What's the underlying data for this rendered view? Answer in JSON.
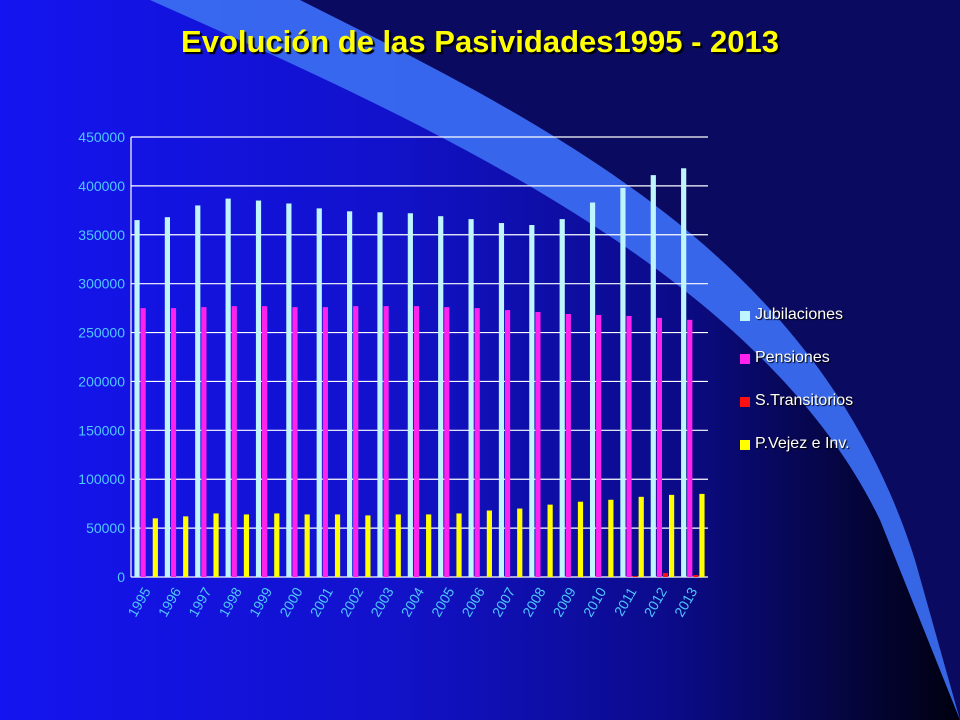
{
  "slide": {
    "title": "Evolución de las Pasividades1995 - 2013"
  },
  "colors": {
    "background_start": "#1414f0",
    "background_end": "#000010",
    "swoosh": "#3a6cf0",
    "title": "#ffff00",
    "axis_text": "#4fc8ff",
    "grid": "#ffffff"
  },
  "chart_data": {
    "type": "bar",
    "title": "",
    "xlabel": "",
    "ylabel": "",
    "ylim": [
      0,
      450000
    ],
    "yticks": [
      0,
      50000,
      100000,
      150000,
      200000,
      250000,
      300000,
      350000,
      400000,
      450000
    ],
    "grid": true,
    "legend_position": "right",
    "categories": [
      "1995",
      "1996",
      "1997",
      "1998",
      "1999",
      "2000",
      "2001",
      "2002",
      "2003",
      "2004",
      "2005",
      "2006",
      "2007",
      "2008",
      "2009",
      "2010",
      "2011",
      "2012",
      "2013"
    ],
    "series": [
      {
        "name": "Jubilaciones",
        "color": "#bff5ff",
        "values": [
          365000,
          368000,
          380000,
          387000,
          385000,
          382000,
          377000,
          374000,
          373000,
          372000,
          369000,
          366000,
          362000,
          360000,
          366000,
          383000,
          398000,
          411000,
          418000
        ]
      },
      {
        "name": "Pensiones",
        "color": "#ff22ee",
        "values": [
          275000,
          275000,
          276000,
          277000,
          277000,
          276000,
          276000,
          277000,
          277000,
          277000,
          276000,
          275000,
          273000,
          271000,
          269000,
          268000,
          267000,
          265000,
          263000
        ]
      },
      {
        "name": "S.Transitorios",
        "color": "#ff1010",
        "values": [
          0,
          0,
          0,
          0,
          0,
          0,
          0,
          0,
          0,
          0,
          0,
          0,
          0,
          0,
          0,
          0,
          1000,
          4000,
          2000
        ]
      },
      {
        "name": "P.Vejez e Inv.",
        "color": "#ffff00",
        "values": [
          60000,
          62000,
          65000,
          64000,
          65000,
          64000,
          64000,
          63000,
          64000,
          64000,
          65000,
          68000,
          70000,
          74000,
          77000,
          79000,
          82000,
          84000,
          85000
        ]
      }
    ]
  }
}
